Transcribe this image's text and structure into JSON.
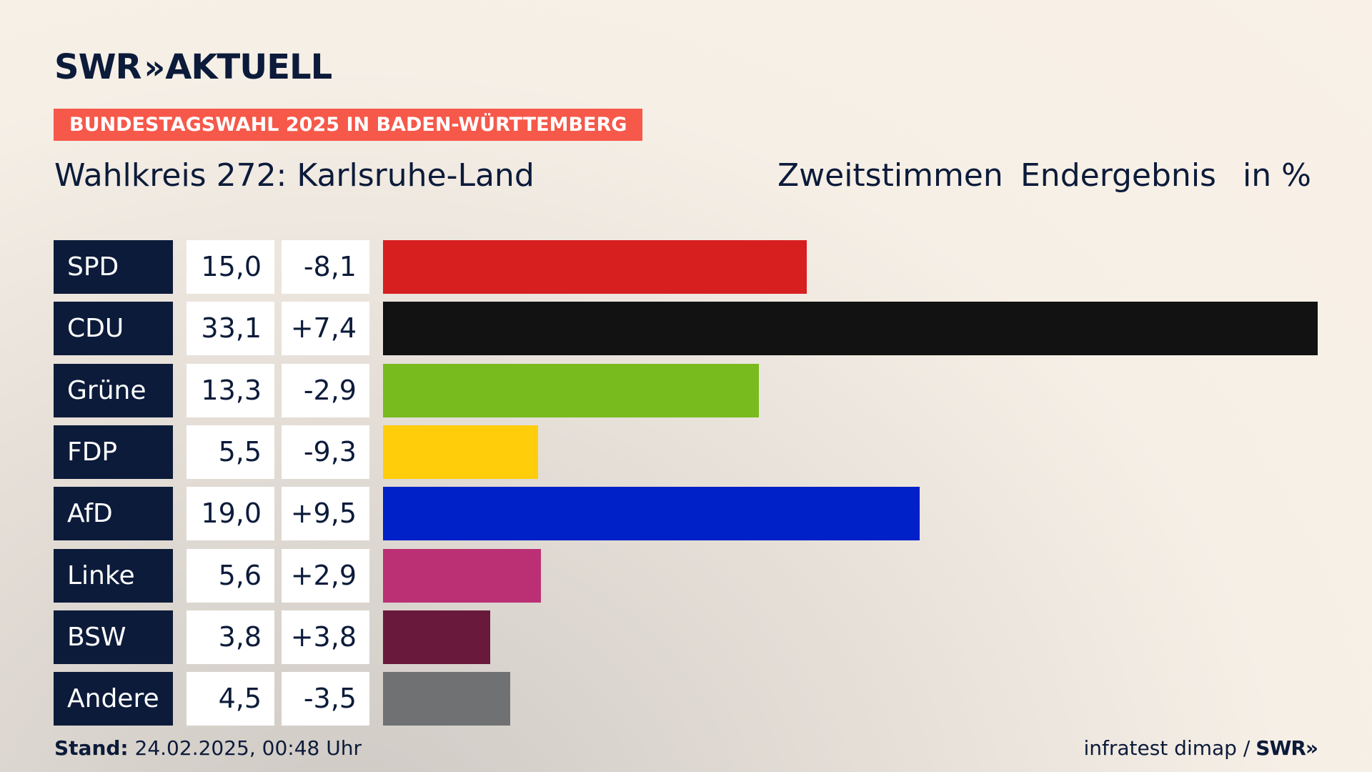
{
  "brand": {
    "logo_left": "SWR",
    "logo_chevron": "»",
    "logo_right": "AKTUELL"
  },
  "banner": {
    "text": "BUNDESTAGSWAHL 2025 IN BADEN-WÜRTTEMBERG",
    "color": "#f6584a"
  },
  "header": {
    "wahlkreis": "Wahlkreis 272: Karlsruhe-Land",
    "vote_type": "Zweitstimmen",
    "result_type": "Endergebnis",
    "unit": "in %"
  },
  "footer": {
    "stand_label": "Stand:",
    "stand_value": "24.02.2025, 00:48 Uhr",
    "source": "infratest dimap /",
    "source_logo": "SWR",
    "source_logo_chevron": "»"
  },
  "chart_data": {
    "type": "bar",
    "orientation": "horizontal",
    "categories": [
      "SPD",
      "CDU",
      "Grüne",
      "FDP",
      "AfD",
      "Linke",
      "BSW",
      "Andere"
    ],
    "values": [
      15.0,
      33.1,
      13.3,
      5.5,
      19.0,
      5.6,
      3.8,
      4.5
    ],
    "value_labels": [
      "15,0",
      "33,1",
      "13,3",
      "5,5",
      "19,0",
      "5,6",
      "3,8",
      "4,5"
    ],
    "diff_labels": [
      "-8,1",
      "+7,4",
      "-2,9",
      "-9,3",
      "+9,5",
      "+2,9",
      "+3,8",
      "-3,5"
    ],
    "diffs": [
      -8.1,
      7.4,
      -2.9,
      -9.3,
      9.5,
      2.9,
      3.8,
      -3.5
    ],
    "colors": [
      "#d71f1f",
      "#121212",
      "#78bb1e",
      "#ffcd0a",
      "#0020c8",
      "#bb3075",
      "#69193c",
      "#707173"
    ],
    "xlim": [
      0,
      33.1
    ]
  }
}
